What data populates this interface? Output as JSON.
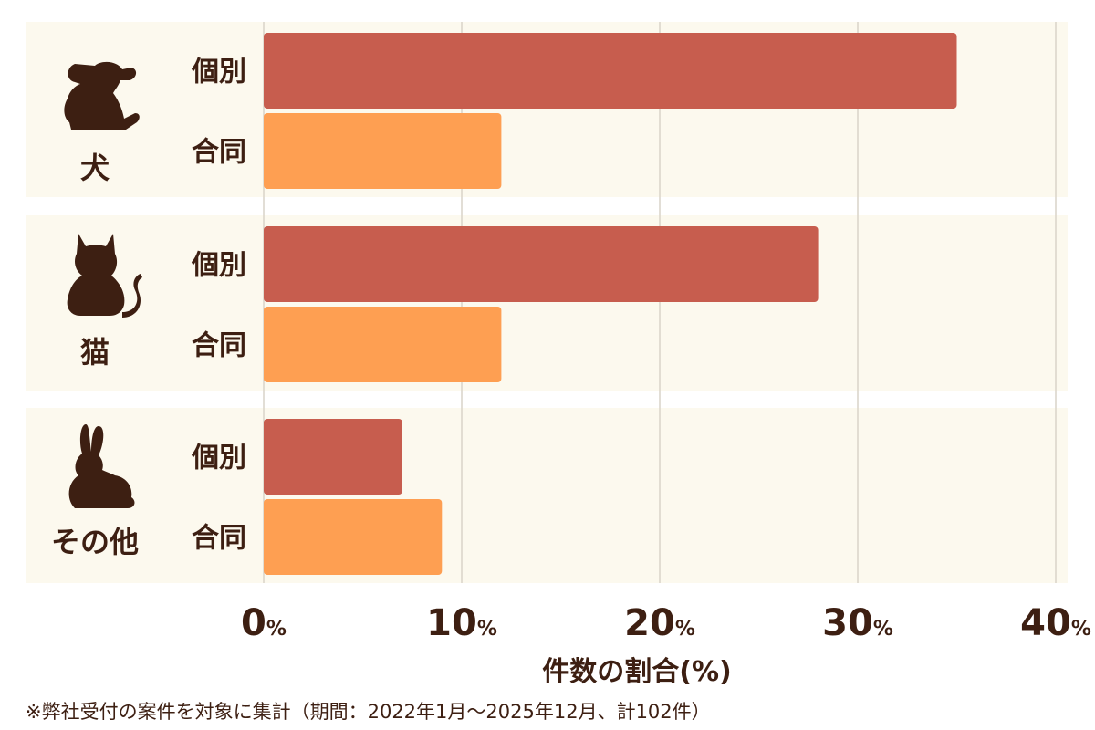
{
  "chart_data": {
    "type": "bar",
    "orientation": "horizontal",
    "groups": [
      {
        "label": "犬",
        "icon": "dog-icon",
        "bars": [
          {
            "label": "個別",
            "value": 35
          },
          {
            "label": "合同",
            "value": 12
          }
        ]
      },
      {
        "label": "猫",
        "icon": "cat-icon",
        "bars": [
          {
            "label": "個別",
            "value": 28
          },
          {
            "label": "合同",
            "value": 12
          }
        ]
      },
      {
        "label": "その他",
        "icon": "rabbit-icon",
        "bars": [
          {
            "label": "個別",
            "value": 7
          },
          {
            "label": "合同",
            "value": 9
          }
        ]
      }
    ],
    "xlim": [
      0,
      40
    ],
    "xticks": [
      0,
      10,
      20,
      30,
      40
    ],
    "tick_unit": "%",
    "xlabel": "件数の割合(%)",
    "grid": true,
    "colors": {
      "個別": "#c75d4e",
      "合同": "#fe9f52",
      "panel": "#fcf9ee",
      "grid": "#d9d4c8",
      "text": "#3d1f12"
    }
  },
  "footnote": "※弊社受付の案件を対象に集計（期間：2022年1月〜2025年12月、計102件）"
}
